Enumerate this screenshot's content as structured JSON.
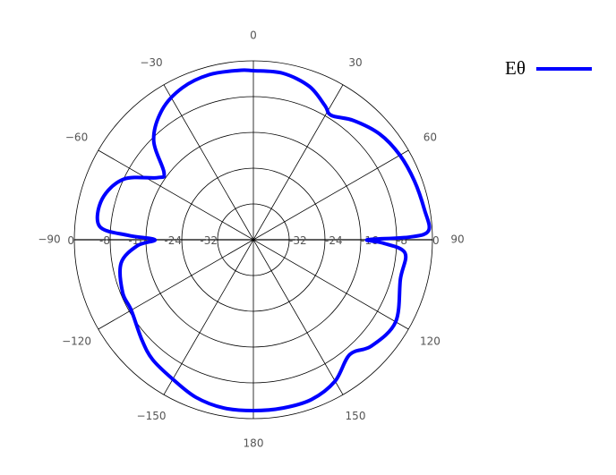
{
  "chart_data": {
    "type": "polar-line",
    "theta_unit": "deg",
    "r_unit": "dB",
    "r_range": [
      -40,
      0
    ],
    "r_tick_values": [
      0,
      -8,
      -16,
      -24,
      -32
    ],
    "r_tick_labels": [
      "0",
      "-8",
      "-16",
      "-24",
      "-32"
    ],
    "theta_ticks": [
      0,
      30,
      60,
      90,
      120,
      150,
      180,
      -150,
      -120,
      -90,
      -60,
      -30
    ],
    "theta_tick_labels": [
      "0",
      "30",
      "60",
      "90",
      "120",
      "150",
      "180",
      "−150",
      "−120",
      "−90",
      "−60",
      "−30"
    ],
    "grid": true,
    "legend_position": "top-right",
    "series": [
      {
        "name": "Eθ",
        "color": "#0000ff",
        "points": [
          {
            "theta": 0,
            "r": -2.2
          },
          {
            "theta": 10,
            "r": -2.2
          },
          {
            "theta": 20,
            "r": -3.5
          },
          {
            "theta": 28,
            "r": -6.0
          },
          {
            "theta": 32,
            "r": -7.2
          },
          {
            "theta": 40,
            "r": -5.2
          },
          {
            "theta": 50,
            "r": -3.2
          },
          {
            "theta": 60,
            "r": -2.2
          },
          {
            "theta": 70,
            "r": -1.7
          },
          {
            "theta": 80,
            "r": -1.2
          },
          {
            "theta": 87,
            "r": -0.8
          },
          {
            "theta": 89,
            "r": -5.0
          },
          {
            "theta": 90,
            "r": -14.5
          },
          {
            "theta": 91.5,
            "r": -11.0
          },
          {
            "theta": 95,
            "r": -6.0
          },
          {
            "theta": 105,
            "r": -6.0
          },
          {
            "theta": 120,
            "r": -3.3
          },
          {
            "theta": 132,
            "r": -4.5
          },
          {
            "theta": 140,
            "r": -6.5
          },
          {
            "theta": 150,
            "r": -3.5
          },
          {
            "theta": 160,
            "r": -2.0
          },
          {
            "theta": 170,
            "r": -1.8
          },
          {
            "theta": 180,
            "r": -1.8
          },
          {
            "theta": -170,
            "r": -1.8
          },
          {
            "theta": -160,
            "r": -2.5
          },
          {
            "theta": -150,
            "r": -4.0
          },
          {
            "theta": -140,
            "r": -5.0
          },
          {
            "theta": -132,
            "r": -6.5
          },
          {
            "theta": -120,
            "r": -8.5
          },
          {
            "theta": -112,
            "r": -8.5
          },
          {
            "theta": -100,
            "r": -10.0
          },
          {
            "theta": -93,
            "r": -14.0
          },
          {
            "theta": -90,
            "r": -18.0
          },
          {
            "theta": -88,
            "r": -12.0
          },
          {
            "theta": -85,
            "r": -5.5
          },
          {
            "theta": -75,
            "r": -5.0
          },
          {
            "theta": -65,
            "r": -8.0
          },
          {
            "theta": -57,
            "r": -14.5
          },
          {
            "theta": -53,
            "r": -15.0
          },
          {
            "theta": -45,
            "r": -8.5
          },
          {
            "theta": -35,
            "r": -4.5
          },
          {
            "theta": -25,
            "r": -2.5
          },
          {
            "theta": -15,
            "r": -1.8
          },
          {
            "theta": -5,
            "r": -2.0
          }
        ]
      }
    ]
  }
}
